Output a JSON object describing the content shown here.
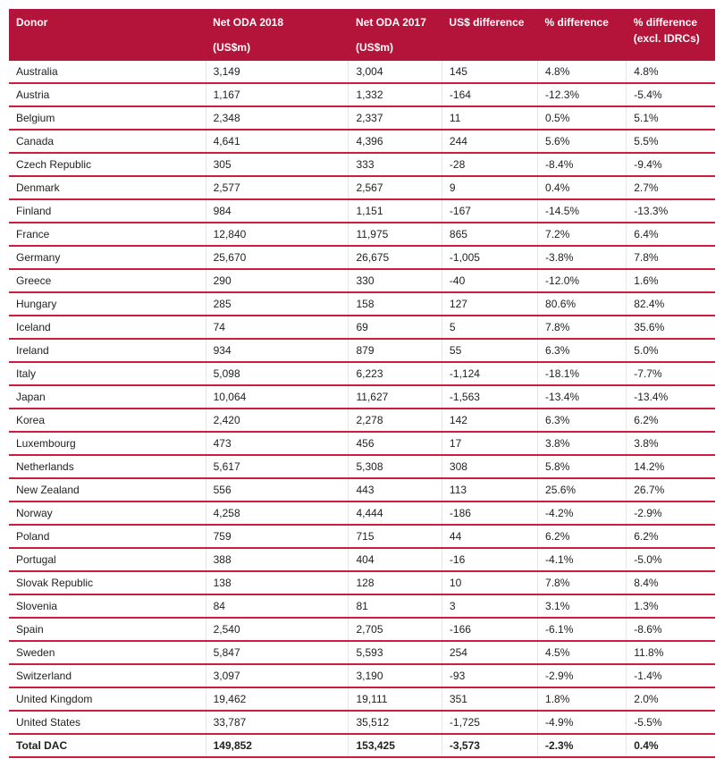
{
  "columns": [
    {
      "label": "Donor",
      "sub": ""
    },
    {
      "label": "Net ODA 2018",
      "sub": "(US$m)"
    },
    {
      "label": "Net ODA 2017",
      "sub": "(US$m)"
    },
    {
      "label": "US$ difference",
      "sub": ""
    },
    {
      "label": "% difference",
      "sub": ""
    },
    {
      "label": "% difference (excl. IDRCs)",
      "sub": ""
    }
  ],
  "rows": [
    [
      "Australia",
      "3,149",
      "3,004",
      "145",
      "4.8%",
      "4.8%"
    ],
    [
      "Austria",
      "1,167",
      "1,332",
      "-164",
      "-12.3%",
      "-5.4%"
    ],
    [
      "Belgium",
      "2,348",
      "2,337",
      "11",
      "0.5%",
      "5.1%"
    ],
    [
      "Canada",
      "4,641",
      "4,396",
      "244",
      "5.6%",
      "5.5%"
    ],
    [
      "Czech Republic",
      "305",
      "333",
      "-28",
      "-8.4%",
      "-9.4%"
    ],
    [
      "Denmark",
      "2,577",
      "2,567",
      "9",
      "0.4%",
      "2.7%"
    ],
    [
      "Finland",
      "984",
      "1,151",
      "-167",
      "-14.5%",
      "-13.3%"
    ],
    [
      "France",
      "12,840",
      "11,975",
      "865",
      "7.2%",
      "6.4%"
    ],
    [
      "Germany",
      "25,670",
      "26,675",
      "-1,005",
      "-3.8%",
      "7.8%"
    ],
    [
      "Greece",
      "290",
      "330",
      "-40",
      "-12.0%",
      "1.6%"
    ],
    [
      "Hungary",
      "285",
      "158",
      "127",
      "80.6%",
      "82.4%"
    ],
    [
      "Iceland",
      "74",
      "69",
      "5",
      "7.8%",
      "35.6%"
    ],
    [
      "Ireland",
      "934",
      "879",
      "55",
      "6.3%",
      "5.0%"
    ],
    [
      "Italy",
      "5,098",
      "6,223",
      "-1,124",
      "-18.1%",
      "-7.7%"
    ],
    [
      "Japan",
      "10,064",
      "11,627",
      "-1,563",
      "-13.4%",
      "-13.4%"
    ],
    [
      "Korea",
      "2,420",
      "2,278",
      "142",
      "6.3%",
      "6.2%"
    ],
    [
      "Luxembourg",
      "473",
      "456",
      "17",
      "3.8%",
      "3.8%"
    ],
    [
      "Netherlands",
      "5,617",
      "5,308",
      "308",
      "5.8%",
      "14.2%"
    ],
    [
      "New Zealand",
      "556",
      "443",
      "113",
      "25.6%",
      "26.7%"
    ],
    [
      "Norway",
      "4,258",
      "4,444",
      "-186",
      "-4.2%",
      "-2.9%"
    ],
    [
      "Poland",
      "759",
      "715",
      "44",
      "6.2%",
      "6.2%"
    ],
    [
      "Portugal",
      "388",
      "404",
      "-16",
      "-4.1%",
      "-5.0%"
    ],
    [
      "Slovak Republic",
      "138",
      "128",
      "10",
      "7.8%",
      "8.4%"
    ],
    [
      "Slovenia",
      "84",
      "81",
      "3",
      "3.1%",
      "1.3%"
    ],
    [
      "Spain",
      "2,540",
      "2,705",
      "-166",
      "-6.1%",
      "-8.6%"
    ],
    [
      "Sweden",
      "5,847",
      "5,593",
      "254",
      "4.5%",
      "11.8%"
    ],
    [
      "Switzerland",
      "3,097",
      "3,190",
      "-93",
      "-2.9%",
      "-1.4%"
    ],
    [
      "United Kingdom",
      "19,462",
      "19,111",
      "351",
      "1.8%",
      "2.0%"
    ],
    [
      "United States",
      "33,787",
      "35,512",
      "-1,725",
      "-4.9%",
      "-5.5%"
    ]
  ],
  "total": [
    "Total DAC",
    "149,852",
    "153,425",
    "-3,573",
    "-2.3%",
    "0.4%"
  ],
  "colors": {
    "header_bg": "#b4133a",
    "header_text": "#ffffff",
    "row_border": "#ce1c3e",
    "cell_text": "#222222",
    "cell_border": "#e6e6e6"
  }
}
